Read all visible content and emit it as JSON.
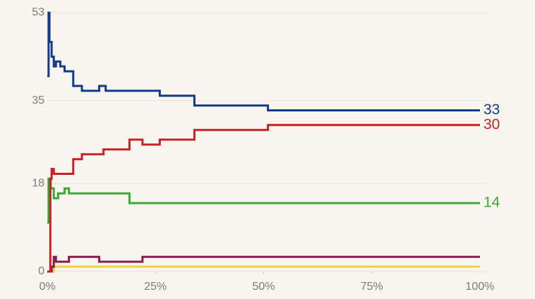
{
  "chart_data": {
    "type": "line",
    "step": "post",
    "xlim": [
      0,
      100
    ],
    "xticks": [
      {
        "value": 0,
        "label": "0%"
      },
      {
        "value": 25,
        "label": "25%"
      },
      {
        "value": 50,
        "label": "50%"
      },
      {
        "value": 75,
        "label": "75%"
      },
      {
        "value": 100,
        "label": "100%"
      }
    ],
    "ylim": [
      0,
      53
    ],
    "yticks": [
      0,
      18,
      35,
      53
    ],
    "grid": true,
    "series": [
      {
        "color": "#123b8c",
        "end_label": true,
        "x": [
          0,
          0.3,
          0.5,
          1,
          1.5,
          2,
          3,
          4,
          6,
          8,
          12,
          13.5,
          26,
          34,
          51,
          100
        ],
        "values": [
          40,
          53,
          47,
          44,
          42,
          43,
          42,
          41,
          38,
          37,
          38,
          37,
          36,
          34,
          33,
          33
        ]
      },
      {
        "color": "#c6212b",
        "end_label": true,
        "x": [
          0,
          0.7,
          1,
          1.5,
          6,
          8,
          13,
          19,
          22,
          26,
          34,
          51,
          100
        ],
        "values": [
          0,
          19,
          21,
          20,
          23,
          24,
          25,
          27,
          26,
          27,
          29,
          30,
          30
        ]
      },
      {
        "color": "#3ba935",
        "end_label": true,
        "x": [
          0,
          0.3,
          0.8,
          1.5,
          2.5,
          4,
          5,
          19,
          100
        ],
        "values": [
          10,
          19,
          17,
          15,
          16,
          17,
          16,
          14,
          14
        ]
      },
      {
        "color": "#8b1a4f",
        "end_label": false,
        "x": [
          0,
          1,
          1.5,
          2,
          5,
          12,
          22,
          100
        ],
        "values": [
          0,
          1,
          3,
          2,
          3,
          2,
          3,
          3
        ]
      },
      {
        "color": "#f0cf3a",
        "end_label": false,
        "x": [
          0,
          1.5,
          100
        ],
        "values": [
          0,
          1,
          1
        ]
      }
    ]
  }
}
